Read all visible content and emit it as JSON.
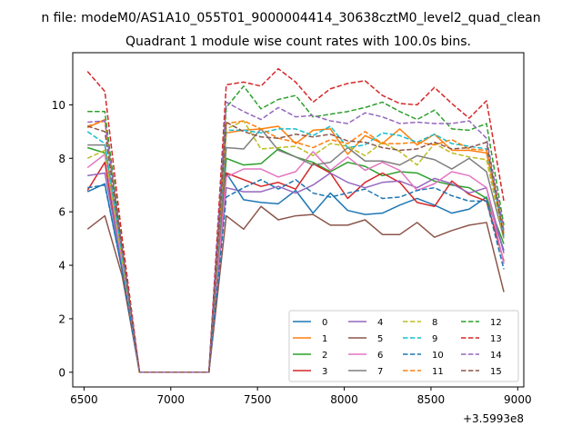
{
  "chart_data": {
    "type": "line",
    "suptitle": "n file: modeM0/AS1A10_055T01_9000004414_30638cztM0_level2_quad_clean",
    "title": "Quadrant 1 module wise count rates with 100.0s bins.",
    "offset_label": "+3.5993e8",
    "xlim": [
      6435,
      9035
    ],
    "ylim": [
      -0.55,
      11.95
    ],
    "xticks": [
      6500,
      7000,
      7500,
      8000,
      8500,
      9000
    ],
    "xtick_labels": [
      "6500",
      "7000",
      "7500",
      "8000",
      "8500",
      "9000"
    ],
    "yticks": [
      0,
      2,
      4,
      6,
      8,
      10
    ],
    "ytick_labels": [
      "0",
      "2",
      "4",
      "6",
      "8",
      "10"
    ],
    "legend_position": "lower-right",
    "x": [
      6520,
      6620,
      6720,
      6820,
      6920,
      7020,
      7120,
      7220,
      7320,
      7420,
      7520,
      7620,
      7720,
      7820,
      7920,
      8020,
      8120,
      8220,
      8320,
      8420,
      8520,
      8620,
      8720,
      8820,
      8920
    ],
    "series": [
      {
        "name": "0",
        "color": "#1f77b4",
        "dash": "solid",
        "values": [
          6.75,
          7.05,
          3.8,
          0,
          0,
          0,
          0,
          0,
          7.45,
          6.45,
          6.35,
          6.3,
          6.8,
          5.95,
          6.7,
          6.05,
          5.9,
          5.95,
          6.25,
          6.5,
          6.25,
          5.95,
          6.1,
          6.55,
          4.55
        ]
      },
      {
        "name": "1",
        "color": "#ff7f0e",
        "dash": "solid",
        "values": [
          9.15,
          9.45,
          4.5,
          0,
          0,
          0,
          0,
          0,
          8.95,
          9.05,
          9.1,
          9.2,
          8.55,
          9.05,
          9.1,
          8.15,
          8.85,
          8.55,
          9.1,
          8.5,
          8.9,
          8.3,
          8.3,
          8.2,
          5.2
        ]
      },
      {
        "name": "2",
        "color": "#2ca02c",
        "dash": "solid",
        "values": [
          8.4,
          8.2,
          4.4,
          0,
          0,
          0,
          0,
          0,
          8.0,
          7.75,
          7.8,
          8.35,
          8.05,
          7.85,
          7.5,
          7.85,
          7.7,
          7.35,
          7.5,
          7.45,
          7.15,
          7.0,
          6.9,
          6.5,
          4.8
        ]
      },
      {
        "name": "3",
        "color": "#d62728",
        "dash": "solid",
        "values": [
          6.8,
          7.85,
          4.0,
          0,
          0,
          0,
          0,
          0,
          7.45,
          7.2,
          6.95,
          7.1,
          6.85,
          7.8,
          7.45,
          6.5,
          7.1,
          7.45,
          7.1,
          6.35,
          6.2,
          7.15,
          6.65,
          6.4,
          4.15
        ]
      },
      {
        "name": "4",
        "color": "#9467bd",
        "dash": "solid",
        "values": [
          7.35,
          7.45,
          4.0,
          0,
          0,
          0,
          0,
          0,
          6.9,
          6.75,
          6.75,
          6.95,
          6.7,
          7.0,
          7.45,
          7.1,
          6.9,
          7.1,
          7.15,
          6.9,
          7.25,
          7.05,
          6.7,
          6.9,
          4.45
        ]
      },
      {
        "name": "5",
        "color": "#8c564b",
        "dash": "solid",
        "values": [
          5.35,
          5.85,
          3.6,
          0,
          0,
          0,
          0,
          0,
          5.85,
          5.35,
          6.2,
          5.7,
          5.85,
          5.9,
          5.5,
          5.5,
          5.7,
          5.15,
          5.15,
          5.6,
          5.05,
          5.3,
          5.5,
          5.6,
          3.0
        ]
      },
      {
        "name": "6",
        "color": "#e377c2",
        "dash": "solid",
        "values": [
          7.65,
          8.15,
          4.1,
          0,
          0,
          0,
          0,
          0,
          7.3,
          7.6,
          7.6,
          7.3,
          7.5,
          8.25,
          7.55,
          8.05,
          7.55,
          7.85,
          7.55,
          6.8,
          7.05,
          7.5,
          7.35,
          6.9,
          4.05
        ]
      },
      {
        "name": "7",
        "color": "#7f7f7f",
        "dash": "solid",
        "values": [
          8.5,
          8.5,
          4.5,
          0,
          0,
          0,
          0,
          0,
          8.4,
          8.35,
          9.1,
          8.3,
          8.05,
          7.75,
          7.85,
          8.4,
          7.9,
          7.9,
          7.75,
          8.1,
          7.95,
          7.6,
          8.0,
          7.5,
          5.0
        ]
      },
      {
        "name": "8",
        "color": "#bcbd22",
        "dash": "dashed",
        "values": [
          8.0,
          8.3,
          4.2,
          0,
          0,
          0,
          0,
          0,
          9.1,
          9.4,
          8.35,
          8.4,
          8.45,
          8.1,
          8.55,
          8.45,
          8.1,
          8.6,
          8.25,
          7.75,
          8.55,
          8.2,
          8.05,
          7.95,
          5.0
        ]
      },
      {
        "name": "9",
        "color": "#17becf",
        "dash": "dashed",
        "values": [
          9.0,
          8.55,
          4.4,
          0,
          0,
          0,
          0,
          0,
          9.05,
          9.05,
          8.95,
          9.1,
          9.1,
          8.85,
          9.2,
          8.4,
          8.5,
          8.95,
          8.85,
          8.6,
          8.9,
          8.55,
          8.45,
          8.35,
          5.1
        ]
      },
      {
        "name": "10",
        "color": "#1f77b4",
        "dash": "dashed",
        "values": [
          6.9,
          7.0,
          3.8,
          0,
          0,
          0,
          0,
          0,
          6.55,
          6.9,
          7.2,
          6.85,
          7.2,
          6.7,
          6.55,
          6.7,
          6.85,
          6.5,
          6.55,
          6.8,
          6.9,
          6.6,
          6.4,
          6.4,
          3.85
        ]
      },
      {
        "name": "11",
        "color": "#ff7f0e",
        "dash": "dashed",
        "values": [
          9.2,
          9.4,
          4.6,
          0,
          0,
          0,
          0,
          0,
          9.3,
          9.4,
          9.1,
          8.75,
          8.6,
          8.4,
          8.7,
          8.55,
          9.0,
          8.55,
          8.55,
          8.6,
          8.5,
          8.7,
          8.35,
          8.3,
          5.45
        ]
      },
      {
        "name": "12",
        "color": "#2ca02c",
        "dash": "dashed",
        "values": [
          9.75,
          9.75,
          4.7,
          0,
          0,
          0,
          0,
          0,
          9.9,
          10.7,
          9.85,
          10.2,
          10.35,
          9.55,
          9.65,
          9.75,
          9.9,
          10.1,
          9.75,
          9.45,
          9.8,
          9.1,
          9.05,
          9.3,
          5.5
        ]
      },
      {
        "name": "13",
        "color": "#d62728",
        "dash": "dashed",
        "values": [
          11.25,
          10.5,
          5.0,
          0,
          0,
          0,
          0,
          0,
          10.75,
          10.85,
          10.7,
          11.35,
          10.85,
          10.1,
          10.6,
          10.8,
          10.9,
          10.35,
          10.05,
          10.0,
          10.65,
          10.05,
          9.5,
          10.15,
          6.4
        ]
      },
      {
        "name": "14",
        "color": "#9467bd",
        "dash": "dashed",
        "values": [
          9.35,
          9.4,
          4.6,
          0,
          0,
          0,
          0,
          0,
          10.1,
          9.75,
          9.45,
          9.9,
          9.55,
          9.6,
          9.4,
          9.3,
          9.7,
          9.55,
          9.3,
          9.35,
          9.3,
          9.3,
          9.4,
          8.75,
          5.3
        ]
      },
      {
        "name": "15",
        "color": "#8c564b",
        "dash": "dashed",
        "values": [
          9.2,
          9.0,
          4.6,
          0,
          0,
          0,
          0,
          0,
          9.35,
          9.0,
          8.8,
          8.75,
          8.9,
          8.8,
          8.9,
          8.65,
          8.6,
          8.4,
          8.3,
          8.35,
          8.6,
          8.35,
          8.4,
          8.6,
          5.05
        ]
      }
    ]
  }
}
